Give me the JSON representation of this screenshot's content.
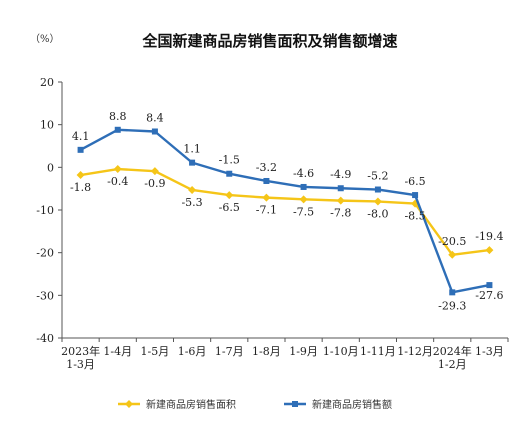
{
  "chart_data": {
    "type": "line",
    "title": "全国新建商品房销售面积及销售额增速",
    "unit": "（%）",
    "categories": [
      "2023年\n1-3月",
      "1-4月",
      "1-5月",
      "1-6月",
      "1-7月",
      "1-8月",
      "1-9月",
      "1-10月",
      "1-11月",
      "1-12月",
      "2024年\n1-2月",
      "1-3月"
    ],
    "ylim": [
      -40,
      20
    ],
    "yticks": [
      20,
      10,
      0,
      -10,
      -20,
      -30,
      -40
    ],
    "grid": false,
    "legend_position": "bottom",
    "series": [
      {
        "name": "新建商品房销售面积",
        "color": "#F5C518",
        "marker": "diamond",
        "values": [
          -1.8,
          -0.4,
          -0.9,
          -5.3,
          -6.5,
          -7.1,
          -7.5,
          -7.8,
          -8.0,
          -8.5,
          -20.5,
          -19.4
        ],
        "labels": [
          "-1.8",
          "-0.4",
          "-0.9",
          "-5.3",
          "-6.5",
          "-7.1",
          "-7.5",
          "-7.8",
          "-8.0",
          "-8.5",
          "-20.5",
          "-19.4"
        ]
      },
      {
        "name": "新建商品房销售额",
        "color": "#2E6EB7",
        "marker": "square",
        "values": [
          4.1,
          8.8,
          8.4,
          1.1,
          -1.5,
          -3.2,
          -4.6,
          -4.9,
          -5.2,
          -6.5,
          -29.3,
          -27.6
        ],
        "labels": [
          "4.1",
          "8.8",
          "8.4",
          "1.1",
          "-1.5",
          "-3.2",
          "-4.6",
          "-4.9",
          "-5.2",
          "-6.5",
          "-29.3",
          "-27.6"
        ]
      }
    ]
  }
}
